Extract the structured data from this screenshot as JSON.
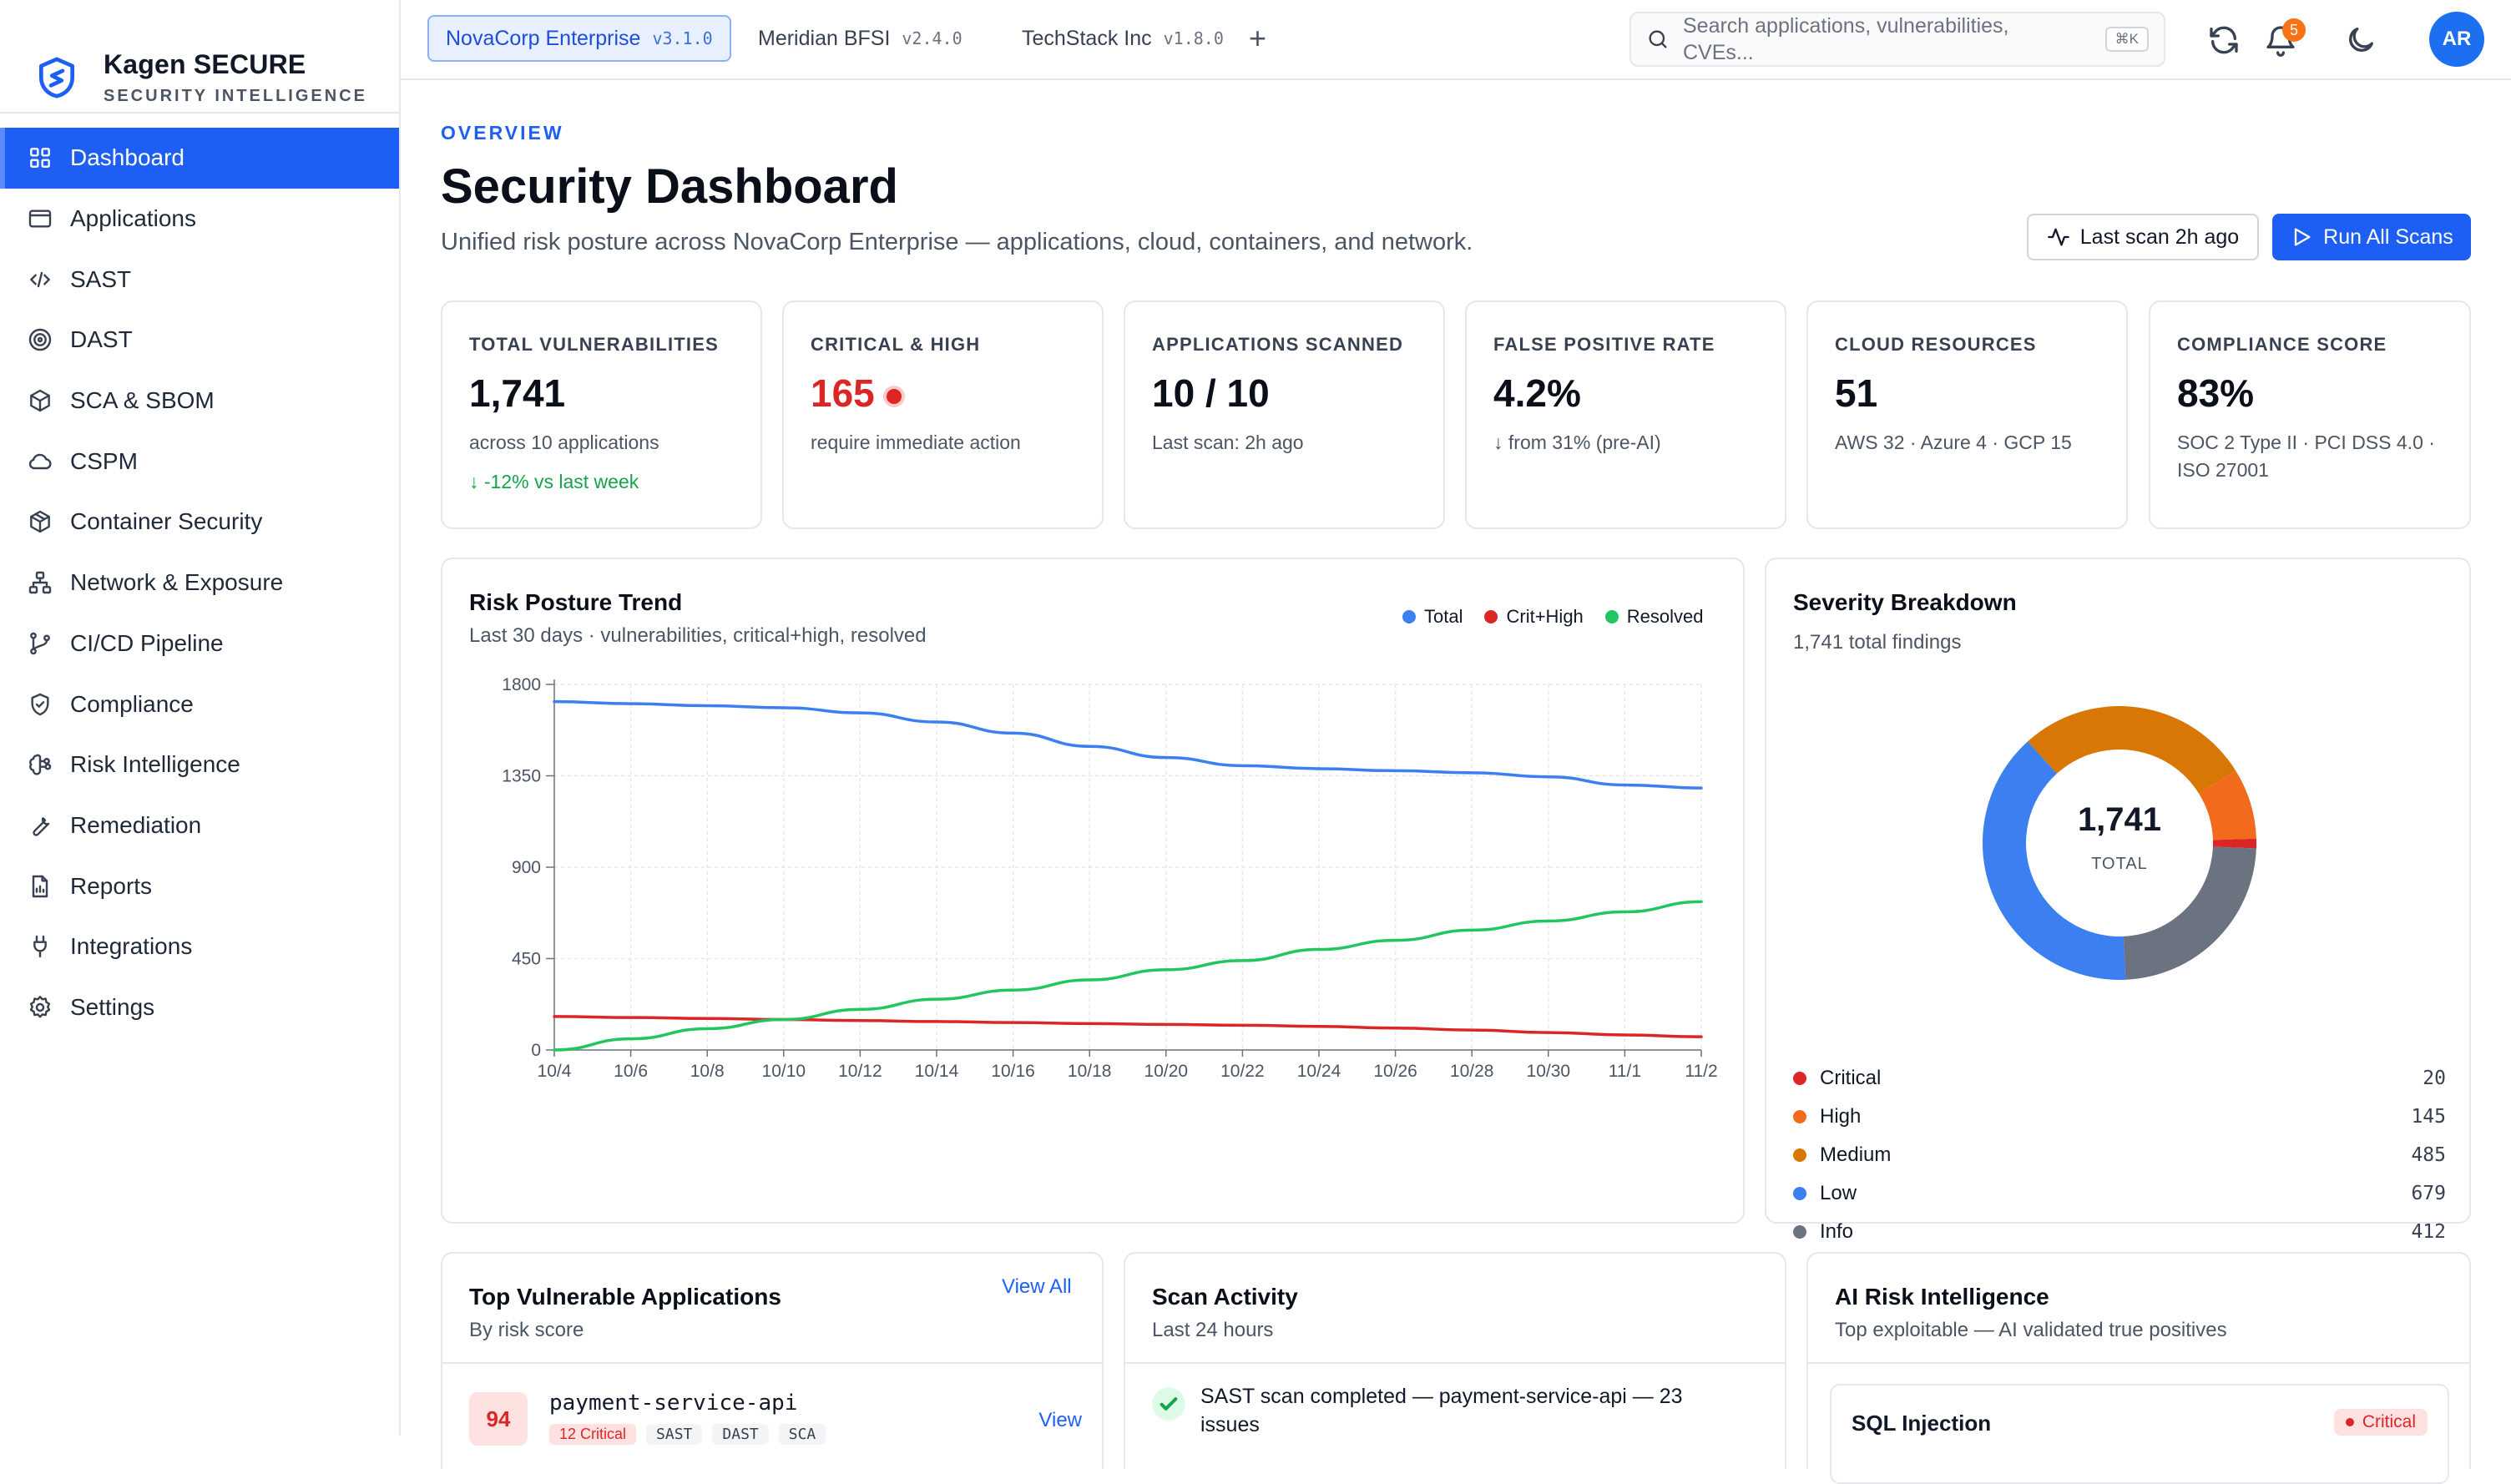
{
  "brand": {
    "name": "Kagen SECURE",
    "subtitle": "SECURITY INTELLIGENCE"
  },
  "sidebar": {
    "items": [
      {
        "label": "Dashboard",
        "icon": "grid-icon",
        "active": true
      },
      {
        "label": "Applications",
        "icon": "window-icon"
      },
      {
        "label": "SAST",
        "icon": "code-icon"
      },
      {
        "label": "DAST",
        "icon": "radar-icon"
      },
      {
        "label": "SCA & SBOM",
        "icon": "package-icon"
      },
      {
        "label": "CSPM",
        "icon": "cloud-icon"
      },
      {
        "label": "Container Security",
        "icon": "box-icon"
      },
      {
        "label": "Network & Exposure",
        "icon": "network-icon"
      },
      {
        "label": "CI/CD Pipeline",
        "icon": "git-branch-icon"
      },
      {
        "label": "Compliance",
        "icon": "shield-check-icon"
      },
      {
        "label": "Risk Intelligence",
        "icon": "brain-icon"
      },
      {
        "label": "Remediation",
        "icon": "wrench-icon"
      },
      {
        "label": "Reports",
        "icon": "file-chart-icon"
      },
      {
        "label": "Integrations",
        "icon": "plug-icon"
      },
      {
        "label": "Settings",
        "icon": "gear-icon"
      }
    ]
  },
  "topbar": {
    "tabs": [
      {
        "label": "NovaCorp Enterprise",
        "version": "v3.1.0",
        "active": true
      },
      {
        "label": "Meridian BFSI",
        "version": "v2.4.0"
      },
      {
        "label": "TechStack Inc",
        "version": "v1.8.0"
      }
    ],
    "add_label": "+",
    "search_placeholder": "Search applications, vulnerabilities, CVEs...",
    "search_shortcut": "⌘K",
    "notification_count": "5",
    "avatar_initials": "AR"
  },
  "header": {
    "eyebrow": "OVERVIEW",
    "title": "Security Dashboard",
    "subtitle": "Unified risk posture across NovaCorp Enterprise — applications, cloud, containers, and network.",
    "last_scan_label": "Last scan 2h ago",
    "run_scans_label": "Run All Scans"
  },
  "stats": [
    {
      "label": "TOTAL VULNERABILITIES",
      "value": "1,741",
      "sub": "across 10 applications",
      "trend": "↓ -12% vs last week"
    },
    {
      "label": "CRITICAL & HIGH",
      "value": "165",
      "sub": "require immediate action"
    },
    {
      "label": "APPLICATIONS SCANNED",
      "value": "10 / 10",
      "sub": "Last scan: 2h ago"
    },
    {
      "label": "FALSE POSITIVE RATE",
      "value": "4.2%",
      "sub": "↓ from 31% (pre-AI)"
    },
    {
      "label": "CLOUD RESOURCES",
      "value": "51",
      "sub": "AWS 32 · Azure 4 · GCP 15"
    },
    {
      "label": "COMPLIANCE SCORE",
      "value": "83%",
      "sub": "SOC 2 Type II · PCI DSS 4.0 · ISO 27001"
    }
  ],
  "trend_panel": {
    "title": "Risk Posture Trend",
    "subtitle": "Last 30 days · vulnerabilities, critical+high, resolved"
  },
  "chart_data": {
    "type": "line",
    "x": [
      "10/4",
      "10/6",
      "10/8",
      "10/10",
      "10/12",
      "10/14",
      "10/16",
      "10/18",
      "10/20",
      "10/22",
      "10/24",
      "10/26",
      "10/28",
      "10/30",
      "11/1",
      "11/2"
    ],
    "ylim": [
      0,
      1800
    ],
    "yticks": [
      0,
      450,
      900,
      1350,
      1800
    ],
    "grid": true,
    "legend": "top-right",
    "series": [
      {
        "name": "Total",
        "color": "#3b7ff0",
        "values": [
          1715,
          1705,
          1695,
          1685,
          1660,
          1615,
          1560,
          1495,
          1440,
          1400,
          1385,
          1375,
          1365,
          1345,
          1305,
          1290
        ]
      },
      {
        "name": "Crit+High",
        "color": "#dc2626",
        "values": [
          165,
          160,
          155,
          150,
          145,
          140,
          135,
          130,
          126,
          122,
          116,
          108,
          98,
          86,
          74,
          65
        ]
      },
      {
        "name": "Resolved",
        "color": "#22c55e",
        "values": [
          0,
          55,
          105,
          150,
          200,
          250,
          295,
          345,
          395,
          440,
          495,
          540,
          590,
          635,
          680,
          730
        ]
      }
    ]
  },
  "severity_panel": {
    "title": "Severity Breakdown",
    "subtitle": "1,741 total findings",
    "center_value": "1,741",
    "center_label": "TOTAL"
  },
  "severity_chart": {
    "type": "pie",
    "slices": [
      {
        "name": "Critical",
        "value": "20",
        "color": "#dc2626"
      },
      {
        "name": "High",
        "value": "145",
        "color": "#f26b1d"
      },
      {
        "name": "Medium",
        "value": "485",
        "color": "#d97706"
      },
      {
        "name": "Low",
        "value": "679",
        "color": "#3b7ff0"
      },
      {
        "name": "Info",
        "value": "412",
        "color": "#6b7280"
      }
    ]
  },
  "top_apps": {
    "title": "Top Vulnerable Applications",
    "subtitle": "By risk score",
    "view_all": "View All",
    "rows": [
      {
        "score": "94",
        "name": "payment-service-api",
        "critical": "12 Critical",
        "tags": [
          "SAST",
          "DAST",
          "SCA"
        ],
        "action": "View"
      }
    ]
  },
  "scan_activity": {
    "title": "Scan Activity",
    "subtitle": "Last 24 hours",
    "items": [
      {
        "text": "SAST scan completed — payment-service-api — 23 issues"
      }
    ]
  },
  "ai_risk": {
    "title": "AI Risk Intelligence",
    "subtitle": "Top exploitable — AI validated true positives",
    "items": [
      {
        "name": "SQL Injection",
        "severity": "Critical"
      }
    ]
  }
}
